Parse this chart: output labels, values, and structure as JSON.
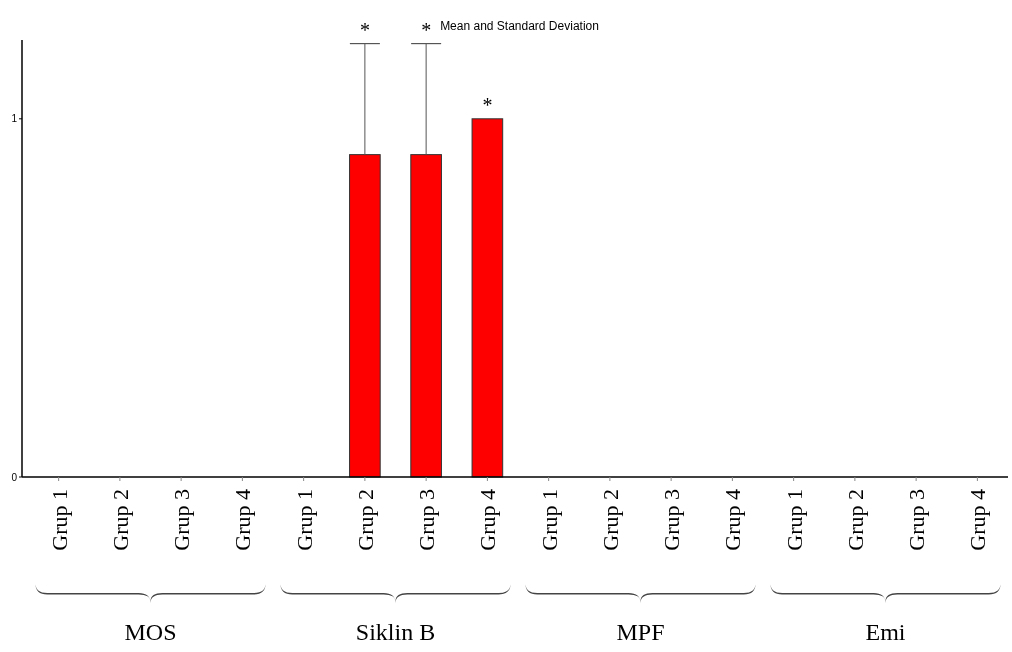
{
  "chart_data": {
    "type": "bar",
    "title": "Mean and Standard Deviation",
    "categories": [
      "Grup 1",
      "Grup 2",
      "Grup 3",
      "Grup 4",
      "Grup 1",
      "Grup 2",
      "Grup 3",
      "Grup 4",
      "Grup 1",
      "Grup 2",
      "Grup 3",
      "Grup 4",
      "Grup 1",
      "Grup 2",
      "Grup 3",
      "Grup 4"
    ],
    "values": [
      0,
      0,
      0,
      0,
      0,
      0.9,
      0.9,
      1.0,
      0,
      0,
      0,
      0,
      0,
      0,
      0,
      0
    ],
    "color": "#ff0000",
    "errors": [
      null,
      null,
      null,
      null,
      null,
      [
        0.9,
        1.21
      ],
      [
        0.9,
        1.21
      ],
      null,
      null,
      null,
      null,
      null,
      null,
      null,
      null,
      null
    ],
    "ylim": [
      0,
      1.22
    ],
    "yticks": [
      0,
      1
    ],
    "grid": false,
    "annotations": [
      "MOS",
      "Siklin B",
      "MPF",
      "Emi",
      {
        "text": "*"
      },
      {
        "text": "*"
      },
      {
        "text": "*"
      }
    ]
  }
}
